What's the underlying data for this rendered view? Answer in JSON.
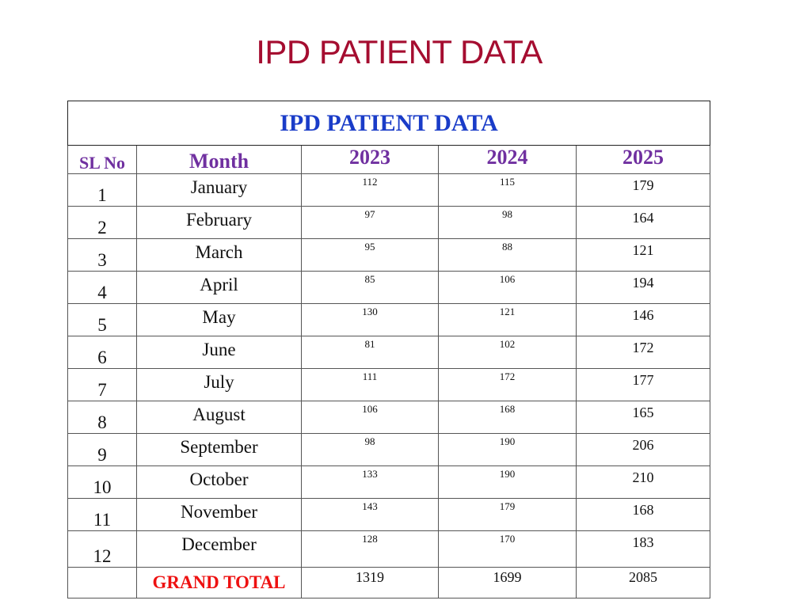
{
  "slide": {
    "title": "IPD PATIENT DATA"
  },
  "table": {
    "caption": "IPD PATIENT DATA",
    "headers": {
      "sl_no": "SL No",
      "month": "Month",
      "y2023": "2023",
      "y2024": "2024",
      "y2025": "2025"
    },
    "rows": [
      {
        "sl": "1",
        "month": "January",
        "y2023": "112",
        "y2024": "115",
        "y2025": "179"
      },
      {
        "sl": "2",
        "month": "February",
        "y2023": "97",
        "y2024": "98",
        "y2025": "164"
      },
      {
        "sl": "3",
        "month": "March",
        "y2023": "95",
        "y2024": "88",
        "y2025": "121"
      },
      {
        "sl": "4",
        "month": "April",
        "y2023": "85",
        "y2024": "106",
        "y2025": "194"
      },
      {
        "sl": "5",
        "month": "May",
        "y2023": "130",
        "y2024": "121",
        "y2025": "146"
      },
      {
        "sl": "6",
        "month": "June",
        "y2023": "81",
        "y2024": "102",
        "y2025": "172"
      },
      {
        "sl": "7",
        "month": "July",
        "y2023": "111",
        "y2024": "172",
        "y2025": "177"
      },
      {
        "sl": "8",
        "month": "August",
        "y2023": "106",
        "y2024": "168",
        "y2025": "165"
      },
      {
        "sl": "9",
        "month": "September",
        "y2023": "98",
        "y2024": "190",
        "y2025": "206"
      },
      {
        "sl": "10",
        "month": "October",
        "y2023": "133",
        "y2024": "190",
        "y2025": "210"
      },
      {
        "sl": "11",
        "month": "November",
        "y2023": "143",
        "y2024": "179",
        "y2025": "168"
      },
      {
        "sl": "12",
        "month": "December",
        "y2023": "128",
        "y2024": "170",
        "y2025": "183"
      }
    ],
    "total": {
      "label": "GRAND TOTAL",
      "y2023": "1319",
      "y2024": "1699",
      "y2025": "2085"
    }
  },
  "colors": {
    "title": "#a50d30",
    "caption": "#1a3cc8",
    "header": "#7030a0",
    "total_label": "#ee1111"
  }
}
